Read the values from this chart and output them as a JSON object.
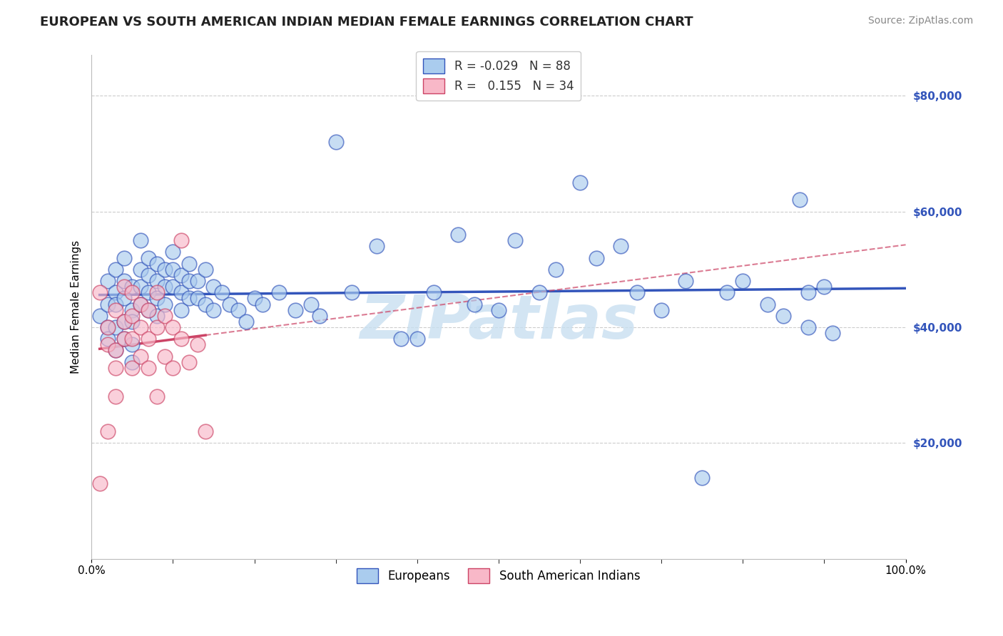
{
  "title": "EUROPEAN VS SOUTH AMERICAN INDIAN MEDIAN FEMALE EARNINGS CORRELATION CHART",
  "source": "Source: ZipAtlas.com",
  "ylabel": "Median Female Earnings",
  "watermark": "ZIPatlas",
  "xlim": [
    0.0,
    1.0
  ],
  "ylim": [
    0,
    87000
  ],
  "yticks": [
    20000,
    40000,
    60000,
    80000
  ],
  "ytick_labels": [
    "$20,000",
    "$40,000",
    "$60,000",
    "$80,000"
  ],
  "xtick_labels": [
    "0.0%",
    "100.0%"
  ],
  "legend_r_european": "-0.029",
  "legend_n_european": "88",
  "legend_r_sa_indian": "0.155",
  "legend_n_sa_indian": "34",
  "color_european": "#aaccee",
  "color_sa_indian": "#f8b8c8",
  "trendline_color_european": "#3355bb",
  "trendline_color_sa_indian": "#cc4466",
  "background_color": "#ffffff",
  "grid_color": "#cccccc",
  "europeans_x": [
    0.01,
    0.02,
    0.02,
    0.02,
    0.02,
    0.03,
    0.03,
    0.03,
    0.03,
    0.03,
    0.04,
    0.04,
    0.04,
    0.04,
    0.04,
    0.05,
    0.05,
    0.05,
    0.05,
    0.05,
    0.06,
    0.06,
    0.06,
    0.06,
    0.07,
    0.07,
    0.07,
    0.07,
    0.08,
    0.08,
    0.08,
    0.08,
    0.09,
    0.09,
    0.09,
    0.1,
    0.1,
    0.1,
    0.11,
    0.11,
    0.11,
    0.12,
    0.12,
    0.12,
    0.13,
    0.13,
    0.14,
    0.14,
    0.15,
    0.15,
    0.16,
    0.17,
    0.18,
    0.19,
    0.2,
    0.21,
    0.23,
    0.25,
    0.27,
    0.28,
    0.3,
    0.32,
    0.35,
    0.38,
    0.4,
    0.42,
    0.45,
    0.47,
    0.5,
    0.52,
    0.55,
    0.57,
    0.6,
    0.62,
    0.65,
    0.67,
    0.7,
    0.73,
    0.75,
    0.78,
    0.8,
    0.83,
    0.85,
    0.87,
    0.88,
    0.88,
    0.9,
    0.91
  ],
  "europeans_y": [
    42000,
    48000,
    44000,
    40000,
    38000,
    46000,
    50000,
    44000,
    40000,
    36000,
    52000,
    48000,
    45000,
    41000,
    38000,
    47000,
    43000,
    41000,
    37000,
    34000,
    55000,
    50000,
    47000,
    44000,
    52000,
    49000,
    46000,
    43000,
    51000,
    48000,
    45000,
    42000,
    50000,
    47000,
    44000,
    53000,
    50000,
    47000,
    49000,
    46000,
    43000,
    51000,
    48000,
    45000,
    48000,
    45000,
    50000,
    44000,
    47000,
    43000,
    46000,
    44000,
    43000,
    41000,
    45000,
    44000,
    46000,
    43000,
    44000,
    42000,
    72000,
    46000,
    54000,
    38000,
    38000,
    46000,
    56000,
    44000,
    43000,
    55000,
    46000,
    50000,
    65000,
    52000,
    54000,
    46000,
    43000,
    48000,
    14000,
    46000,
    48000,
    44000,
    42000,
    62000,
    40000,
    46000,
    47000,
    39000
  ],
  "sa_indians_x": [
    0.01,
    0.01,
    0.02,
    0.02,
    0.02,
    0.03,
    0.03,
    0.03,
    0.03,
    0.04,
    0.04,
    0.04,
    0.05,
    0.05,
    0.05,
    0.05,
    0.06,
    0.06,
    0.06,
    0.07,
    0.07,
    0.07,
    0.08,
    0.08,
    0.08,
    0.09,
    0.09,
    0.1,
    0.1,
    0.11,
    0.11,
    0.12,
    0.13,
    0.14
  ],
  "sa_indians_y": [
    13000,
    46000,
    40000,
    37000,
    22000,
    43000,
    36000,
    33000,
    28000,
    47000,
    41000,
    38000,
    46000,
    42000,
    38000,
    33000,
    44000,
    40000,
    35000,
    43000,
    38000,
    33000,
    46000,
    40000,
    28000,
    42000,
    35000,
    40000,
    33000,
    55000,
    38000,
    34000,
    37000,
    22000
  ],
  "title_fontsize": 13,
  "axis_label_fontsize": 11,
  "tick_fontsize": 11,
  "legend_fontsize": 12,
  "source_fontsize": 10
}
